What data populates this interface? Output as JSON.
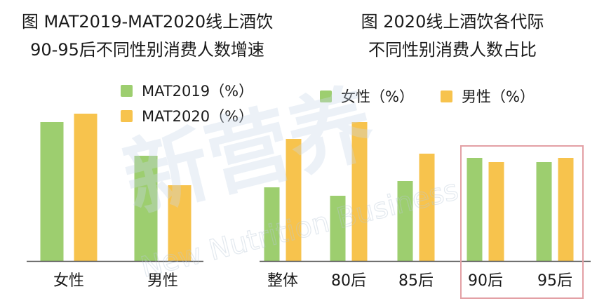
{
  "colors": {
    "green": "#9dce6f",
    "yellow": "#f7c34d",
    "axis": "#555555",
    "highlight": "#e3a0a5"
  },
  "watermark": {
    "main": "新营养",
    "sub": "New Nutrition Business"
  },
  "chart_data": [
    {
      "type": "bar",
      "title": "图 MAT2019-MAT2020线上酒饮",
      "subtitle": "90-95后不同性别消费人数增速",
      "categories": [
        "女性",
        "男性"
      ],
      "series": [
        {
          "name": "MAT2019（%）",
          "color": "#9dce6f",
          "values": [
            66,
            50
          ]
        },
        {
          "name": "MAT2020（%）",
          "color": "#f7c34d",
          "values": [
            70,
            36
          ]
        }
      ],
      "ylim": [
        0,
        100
      ],
      "legend": "top-right",
      "grid": false
    },
    {
      "type": "bar",
      "title": "图 2020线上酒饮各代际",
      "subtitle": "不同性别消费人数占比",
      "categories": [
        "整体",
        "80后",
        "85后",
        "90后",
        "95后"
      ],
      "series": [
        {
          "name": "女性（%）",
          "color": "#9dce6f",
          "values": [
            35,
            31,
            38,
            49,
            47
          ]
        },
        {
          "name": "男性（%）",
          "color": "#f7c34d",
          "values": [
            58,
            66,
            51,
            47,
            49
          ]
        }
      ],
      "ylim": [
        0,
        100
      ],
      "legend": "top",
      "grid": false,
      "highlight": [
        "90后",
        "95后"
      ]
    }
  ]
}
